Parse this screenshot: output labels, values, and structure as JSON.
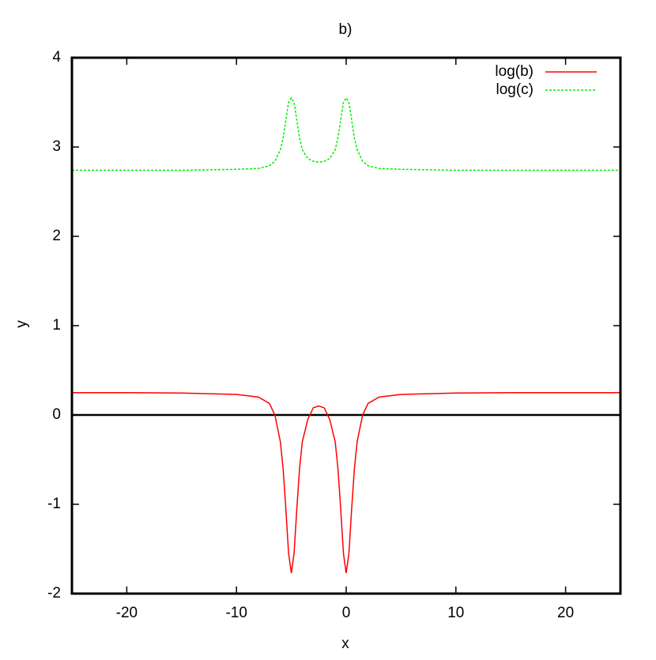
{
  "chart_data": {
    "type": "line",
    "title": "b)",
    "x_label": "x",
    "y_label": "y",
    "x": [
      -25,
      -20,
      -15,
      -10,
      -8,
      -7,
      -6.5,
      -6,
      -5.75,
      -5.5,
      -5.25,
      -5,
      -4.75,
      -4.5,
      -4.25,
      -4,
      -3.5,
      -3,
      -2.5,
      -2,
      -1.5,
      -1,
      -0.75,
      -0.5,
      -0.25,
      0,
      0.25,
      0.5,
      0.75,
      1,
      1.5,
      2,
      3,
      5,
      10,
      15,
      20,
      25
    ],
    "series": [
      {
        "name": "log(b)",
        "color": "#ff0000",
        "dash": false,
        "values": [
          0.25,
          0.25,
          0.245,
          0.23,
          0.2,
          0.13,
          0.0,
          -0.3,
          -0.6,
          -1.05,
          -1.55,
          -1.77,
          -1.55,
          -1.05,
          -0.6,
          -0.3,
          -0.05,
          0.08,
          0.1,
          0.08,
          -0.05,
          -0.3,
          -0.6,
          -1.05,
          -1.55,
          -1.77,
          -1.55,
          -1.05,
          -0.6,
          -0.3,
          0.0,
          0.13,
          0.2,
          0.23,
          0.245,
          0.25,
          0.25,
          0.25
        ]
      },
      {
        "name": "log(c)",
        "color": "#00ee00",
        "dash": true,
        "values": [
          2.74,
          2.74,
          2.74,
          2.75,
          2.76,
          2.79,
          2.84,
          2.97,
          3.1,
          3.3,
          3.5,
          3.55,
          3.5,
          3.3,
          3.1,
          2.97,
          2.87,
          2.84,
          2.83,
          2.84,
          2.87,
          2.97,
          3.1,
          3.3,
          3.5,
          3.55,
          3.5,
          3.3,
          3.1,
          2.97,
          2.84,
          2.79,
          2.76,
          2.75,
          2.74,
          2.74,
          2.74,
          2.74
        ]
      }
    ],
    "xlim": [
      -25,
      25
    ],
    "xticks": [
      -20,
      -10,
      0,
      10,
      20
    ],
    "ylim": [
      -2,
      4
    ],
    "yticks": [
      -2,
      -1,
      0,
      1,
      2,
      3,
      4
    ],
    "zero_axis": true,
    "legend": "top-right"
  }
}
